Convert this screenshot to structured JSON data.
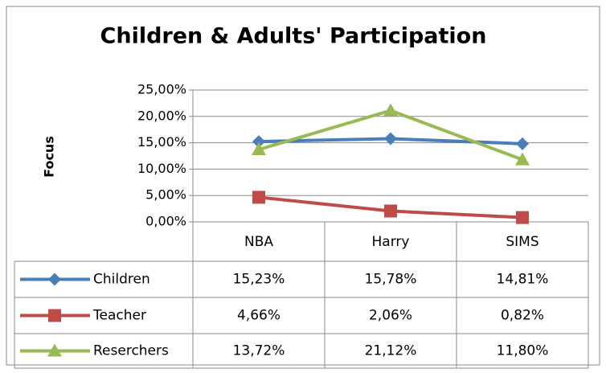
{
  "chart_data": {
    "type": "line",
    "title": "Children & Adults' Participation",
    "y_label": "Focus",
    "categories": [
      "NBA",
      "Harry",
      "SIMS"
    ],
    "ylim": [
      0,
      25
    ],
    "yticks": [
      {
        "value": 0,
        "label": "0,00%"
      },
      {
        "value": 5,
        "label": "5,00%"
      },
      {
        "value": 10,
        "label": "10,00%"
      },
      {
        "value": 15,
        "label": "15,00%"
      },
      {
        "value": 20,
        "label": "20,00%"
      },
      {
        "value": 25,
        "label": "25,00%"
      }
    ],
    "grid": true,
    "series": [
      {
        "name": "Children",
        "color": "#4a7ebb",
        "marker": "diamond",
        "values": [
          15.23,
          15.78,
          14.81
        ],
        "value_labels": [
          "15,23%",
          "15,78%",
          "14,81%"
        ]
      },
      {
        "name": "Teacher",
        "color": "#be4b48",
        "marker": "square",
        "values": [
          4.66,
          2.06,
          0.82
        ],
        "value_labels": [
          "4,66%",
          "2,06%",
          "0,82%"
        ]
      },
      {
        "name": "Reserchers",
        "color": "#98b954",
        "marker": "triangle",
        "values": [
          13.72,
          21.12,
          11.8
        ],
        "value_labels": [
          "13,72%",
          "21,12%",
          "11,80%"
        ]
      }
    ]
  }
}
